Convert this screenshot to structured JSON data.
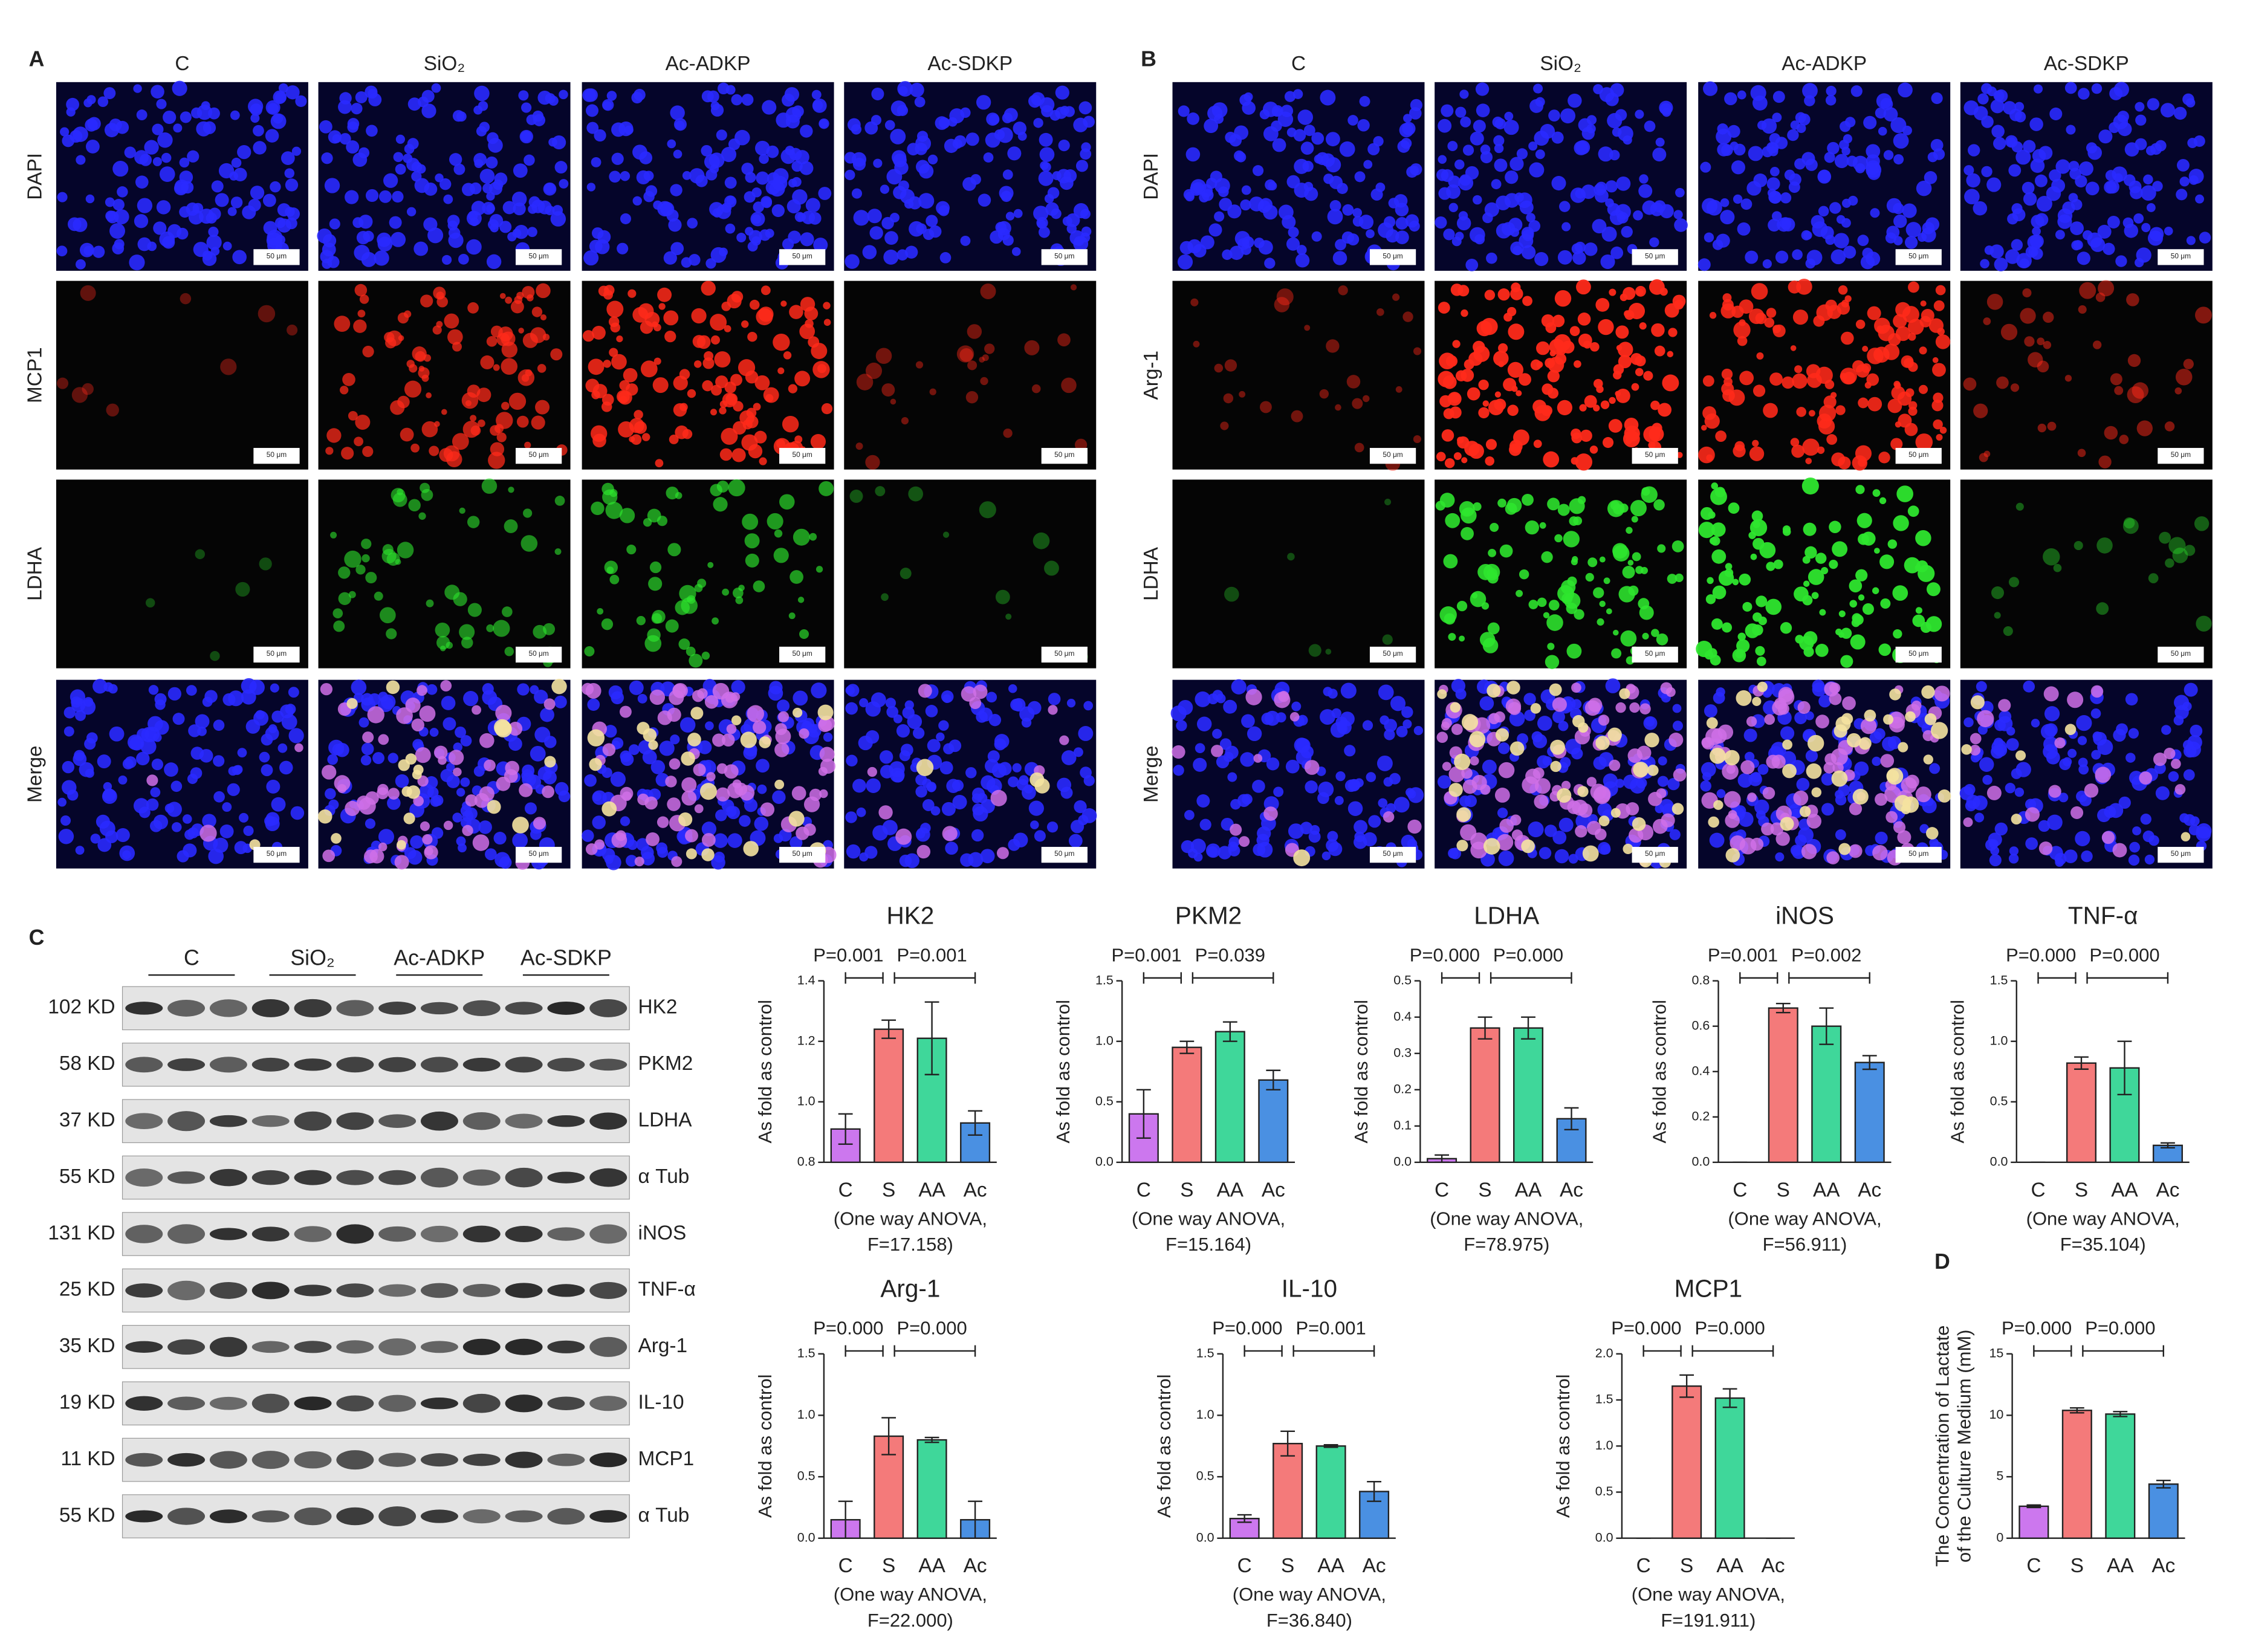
{
  "panel_a": {
    "label": "A",
    "columns": [
      "C",
      "SiO₂",
      "Ac-ADKP",
      "Ac-SDKP"
    ],
    "rows": [
      "DAPI",
      "MCP1",
      "LDHA",
      "Merge"
    ],
    "scale_bar": "50 μm"
  },
  "panel_b": {
    "label": "B",
    "columns": [
      "C",
      "SiO₂",
      "Ac-ADKP",
      "Ac-SDKP"
    ],
    "rows": [
      "DAPI",
      "Arg-1",
      "LDHA",
      "Merge"
    ],
    "scale_bar": "50 μm"
  },
  "panel_c": {
    "label": "C",
    "groups": [
      "C",
      "SiO₂",
      "Ac-ADKP",
      "Ac-SDKP"
    ],
    "bands": [
      {
        "size": "102 KD",
        "protein": "HK2"
      },
      {
        "size": "58 KD",
        "protein": "PKM2"
      },
      {
        "size": "37 KD",
        "protein": "LDHA"
      },
      {
        "size": "55 KD",
        "protein": "α Tub"
      },
      {
        "size": "131 KD",
        "protein": "iNOS"
      },
      {
        "size": "25 KD",
        "protein": "TNF-α"
      },
      {
        "size": "35 KD",
        "protein": "Arg-1"
      },
      {
        "size": "19 KD",
        "protein": "IL-10"
      },
      {
        "size": "11 KD",
        "protein": "MCP1"
      },
      {
        "size": "55 KD",
        "protein": "α Tub"
      }
    ]
  },
  "chart_data": [
    {
      "type": "bar",
      "title": "HK2",
      "ylabel": [
        "As fold as control"
      ],
      "categories": [
        "C",
        "S",
        "AA",
        "Ac"
      ],
      "colors": [
        "#cc77ee",
        "#f47a7a",
        "#3fd79a",
        "#4a90e2"
      ],
      "values": [
        0.91,
        1.24,
        1.21,
        0.93
      ],
      "errors": [
        0.05,
        0.03,
        0.12,
        0.04
      ],
      "ylim": [
        0.8,
        1.4
      ],
      "yticks": [
        {
          "value": 0.8,
          "label": "0.8"
        },
        {
          "value": 1.0,
          "label": "1.0"
        },
        {
          "value": 1.2,
          "label": "1.2"
        },
        {
          "value": 1.4,
          "label": "1.4"
        }
      ],
      "annotations": [
        "P=0.001",
        "P=0.001"
      ],
      "note": [
        "(One way ANOVA,",
        "F=17.158)"
      ]
    },
    {
      "type": "bar",
      "title": "PKM2",
      "ylabel": [
        "As fold as control"
      ],
      "categories": [
        "C",
        "S",
        "AA",
        "Ac"
      ],
      "colors": [
        "#cc77ee",
        "#f47a7a",
        "#3fd79a",
        "#4a90e2"
      ],
      "values": [
        0.4,
        0.95,
        1.08,
        0.68
      ],
      "errors": [
        0.2,
        0.05,
        0.08,
        0.08
      ],
      "ylim": [
        0,
        1.5
      ],
      "yticks": [
        {
          "value": 0,
          "label": "0.0"
        },
        {
          "value": 0.5,
          "label": "0.5"
        },
        {
          "value": 1.0,
          "label": "1.0"
        },
        {
          "value": 1.5,
          "label": "1.5"
        }
      ],
      "annotations": [
        "P=0.001",
        "P=0.039"
      ],
      "note": [
        "(One way ANOVA,",
        "F=15.164)"
      ]
    },
    {
      "type": "bar",
      "title": "LDHA",
      "ylabel": [
        "As fold as control"
      ],
      "categories": [
        "C",
        "S",
        "AA",
        "Ac"
      ],
      "colors": [
        "#cc77ee",
        "#f47a7a",
        "#3fd79a",
        "#4a90e2"
      ],
      "values": [
        0.01,
        0.37,
        0.37,
        0.12
      ],
      "errors": [
        0.01,
        0.03,
        0.03,
        0.03
      ],
      "ylim": [
        0,
        0.5
      ],
      "yticks": [
        {
          "value": 0,
          "label": "0.0"
        },
        {
          "value": 0.1,
          "label": "0.1"
        },
        {
          "value": 0.2,
          "label": "0.2"
        },
        {
          "value": 0.3,
          "label": "0.3"
        },
        {
          "value": 0.4,
          "label": "0.4"
        },
        {
          "value": 0.5,
          "label": "0.5"
        }
      ],
      "annotations": [
        "P=0.000",
        "P=0.000"
      ],
      "note": [
        "(One way ANOVA,",
        "F=78.975)"
      ]
    },
    {
      "type": "bar",
      "title": "iNOS",
      "ylabel": [
        "As fold as control"
      ],
      "categories": [
        "C",
        "S",
        "AA",
        "Ac"
      ],
      "colors": [
        "#cc77ee",
        "#f47a7a",
        "#3fd79a",
        "#4a90e2"
      ],
      "values": [
        0,
        0.68,
        0.6,
        0.44
      ],
      "errors": [
        0,
        0.02,
        0.08,
        0.03
      ],
      "ylim": [
        0,
        0.8
      ],
      "yticks": [
        {
          "value": 0,
          "label": "0.0"
        },
        {
          "value": 0.2,
          "label": "0.2"
        },
        {
          "value": 0.4,
          "label": "0.4"
        },
        {
          "value": 0.6,
          "label": "0.6"
        },
        {
          "value": 0.8,
          "label": "0.8"
        }
      ],
      "annotations": [
        "P=0.001",
        "P=0.002"
      ],
      "note": [
        "(One way ANOVA,",
        "F=56.911)"
      ]
    },
    {
      "type": "bar",
      "title": "TNF-α",
      "ylabel": [
        "As fold as control"
      ],
      "categories": [
        "C",
        "S",
        "AA",
        "Ac"
      ],
      "colors": [
        "#cc77ee",
        "#f47a7a",
        "#3fd79a",
        "#4a90e2"
      ],
      "values": [
        0,
        0.82,
        0.78,
        0.14
      ],
      "errors": [
        0,
        0.05,
        0.22,
        0.02
      ],
      "ylim": [
        0,
        1.5
      ],
      "yticks": [
        {
          "value": 0,
          "label": "0.0"
        },
        {
          "value": 0.5,
          "label": "0.5"
        },
        {
          "value": 1.0,
          "label": "1.0"
        },
        {
          "value": 1.5,
          "label": "1.5"
        }
      ],
      "annotations": [
        "P=0.000",
        "P=0.000"
      ],
      "note": [
        "(One way ANOVA,",
        "F=35.104)"
      ]
    },
    {
      "type": "bar",
      "title": "Arg-1",
      "ylabel": [
        "As fold as control"
      ],
      "categories": [
        "C",
        "S",
        "AA",
        "Ac"
      ],
      "colors": [
        "#cc77ee",
        "#f47a7a",
        "#3fd79a",
        "#4a90e2"
      ],
      "values": [
        0.15,
        0.83,
        0.8,
        0.15
      ],
      "errors": [
        0.15,
        0.15,
        0.02,
        0.15
      ],
      "ylim": [
        0,
        1.5
      ],
      "yticks": [
        {
          "value": 0,
          "label": "0.0"
        },
        {
          "value": 0.5,
          "label": "0.5"
        },
        {
          "value": 1.0,
          "label": "1.0"
        },
        {
          "value": 1.5,
          "label": "1.5"
        }
      ],
      "annotations": [
        "P=0.000",
        "P=0.000"
      ],
      "note": [
        "(One way ANOVA,",
        "F=22.000)"
      ]
    },
    {
      "type": "bar",
      "title": "IL-10",
      "ylabel": [
        "As fold as control"
      ],
      "categories": [
        "C",
        "S",
        "AA",
        "Ac"
      ],
      "colors": [
        "#cc77ee",
        "#f47a7a",
        "#3fd79a",
        "#4a90e2"
      ],
      "values": [
        0.16,
        0.77,
        0.75,
        0.38
      ],
      "errors": [
        0.03,
        0.1,
        0.01,
        0.08
      ],
      "ylim": [
        0,
        1.5
      ],
      "yticks": [
        {
          "value": 0,
          "label": "0.0"
        },
        {
          "value": 0.5,
          "label": "0.5"
        },
        {
          "value": 1.0,
          "label": "1.0"
        },
        {
          "value": 1.5,
          "label": "1.5"
        }
      ],
      "annotations": [
        "P=0.000",
        "P=0.001"
      ],
      "note": [
        "(One way ANOVA,",
        "F=36.840)"
      ]
    },
    {
      "type": "bar",
      "title": "MCP1",
      "ylabel": [
        "As fold as control"
      ],
      "categories": [
        "C",
        "S",
        "AA",
        "Ac"
      ],
      "colors": [
        "#cc77ee",
        "#f47a7a",
        "#3fd79a",
        "#4a90e2"
      ],
      "values": [
        0,
        1.65,
        1.52,
        0
      ],
      "errors": [
        0,
        0.12,
        0.1,
        0
      ],
      "ylim": [
        0,
        2.0
      ],
      "yticks": [
        {
          "value": 0,
          "label": "0.0"
        },
        {
          "value": 0.5,
          "label": "0.5"
        },
        {
          "value": 1.0,
          "label": "1.0"
        },
        {
          "value": 1.5,
          "label": "1.5"
        },
        {
          "value": 2.0,
          "label": "2.0"
        }
      ],
      "annotations": [
        "P=0.000",
        "P=0.000"
      ],
      "note": [
        "(One way ANOVA,",
        "F=191.911)"
      ]
    },
    {
      "type": "bar",
      "panel_label": "D",
      "ylabel": [
        "The Concentration of Lactate",
        "of the Culture Medium (mM)"
      ],
      "categories": [
        "C",
        "S",
        "AA",
        "Ac"
      ],
      "colors": [
        "#cc77ee",
        "#f47a7a",
        "#3fd79a",
        "#4a90e2"
      ],
      "values": [
        2.6,
        10.4,
        10.1,
        4.4
      ],
      "errors": [
        0.1,
        0.2,
        0.2,
        0.3
      ],
      "ylim": [
        0,
        15
      ],
      "yticks": [
        0,
        5,
        10,
        15
      ],
      "annotations": [
        "P=0.000",
        "P=0.000"
      ]
    }
  ]
}
